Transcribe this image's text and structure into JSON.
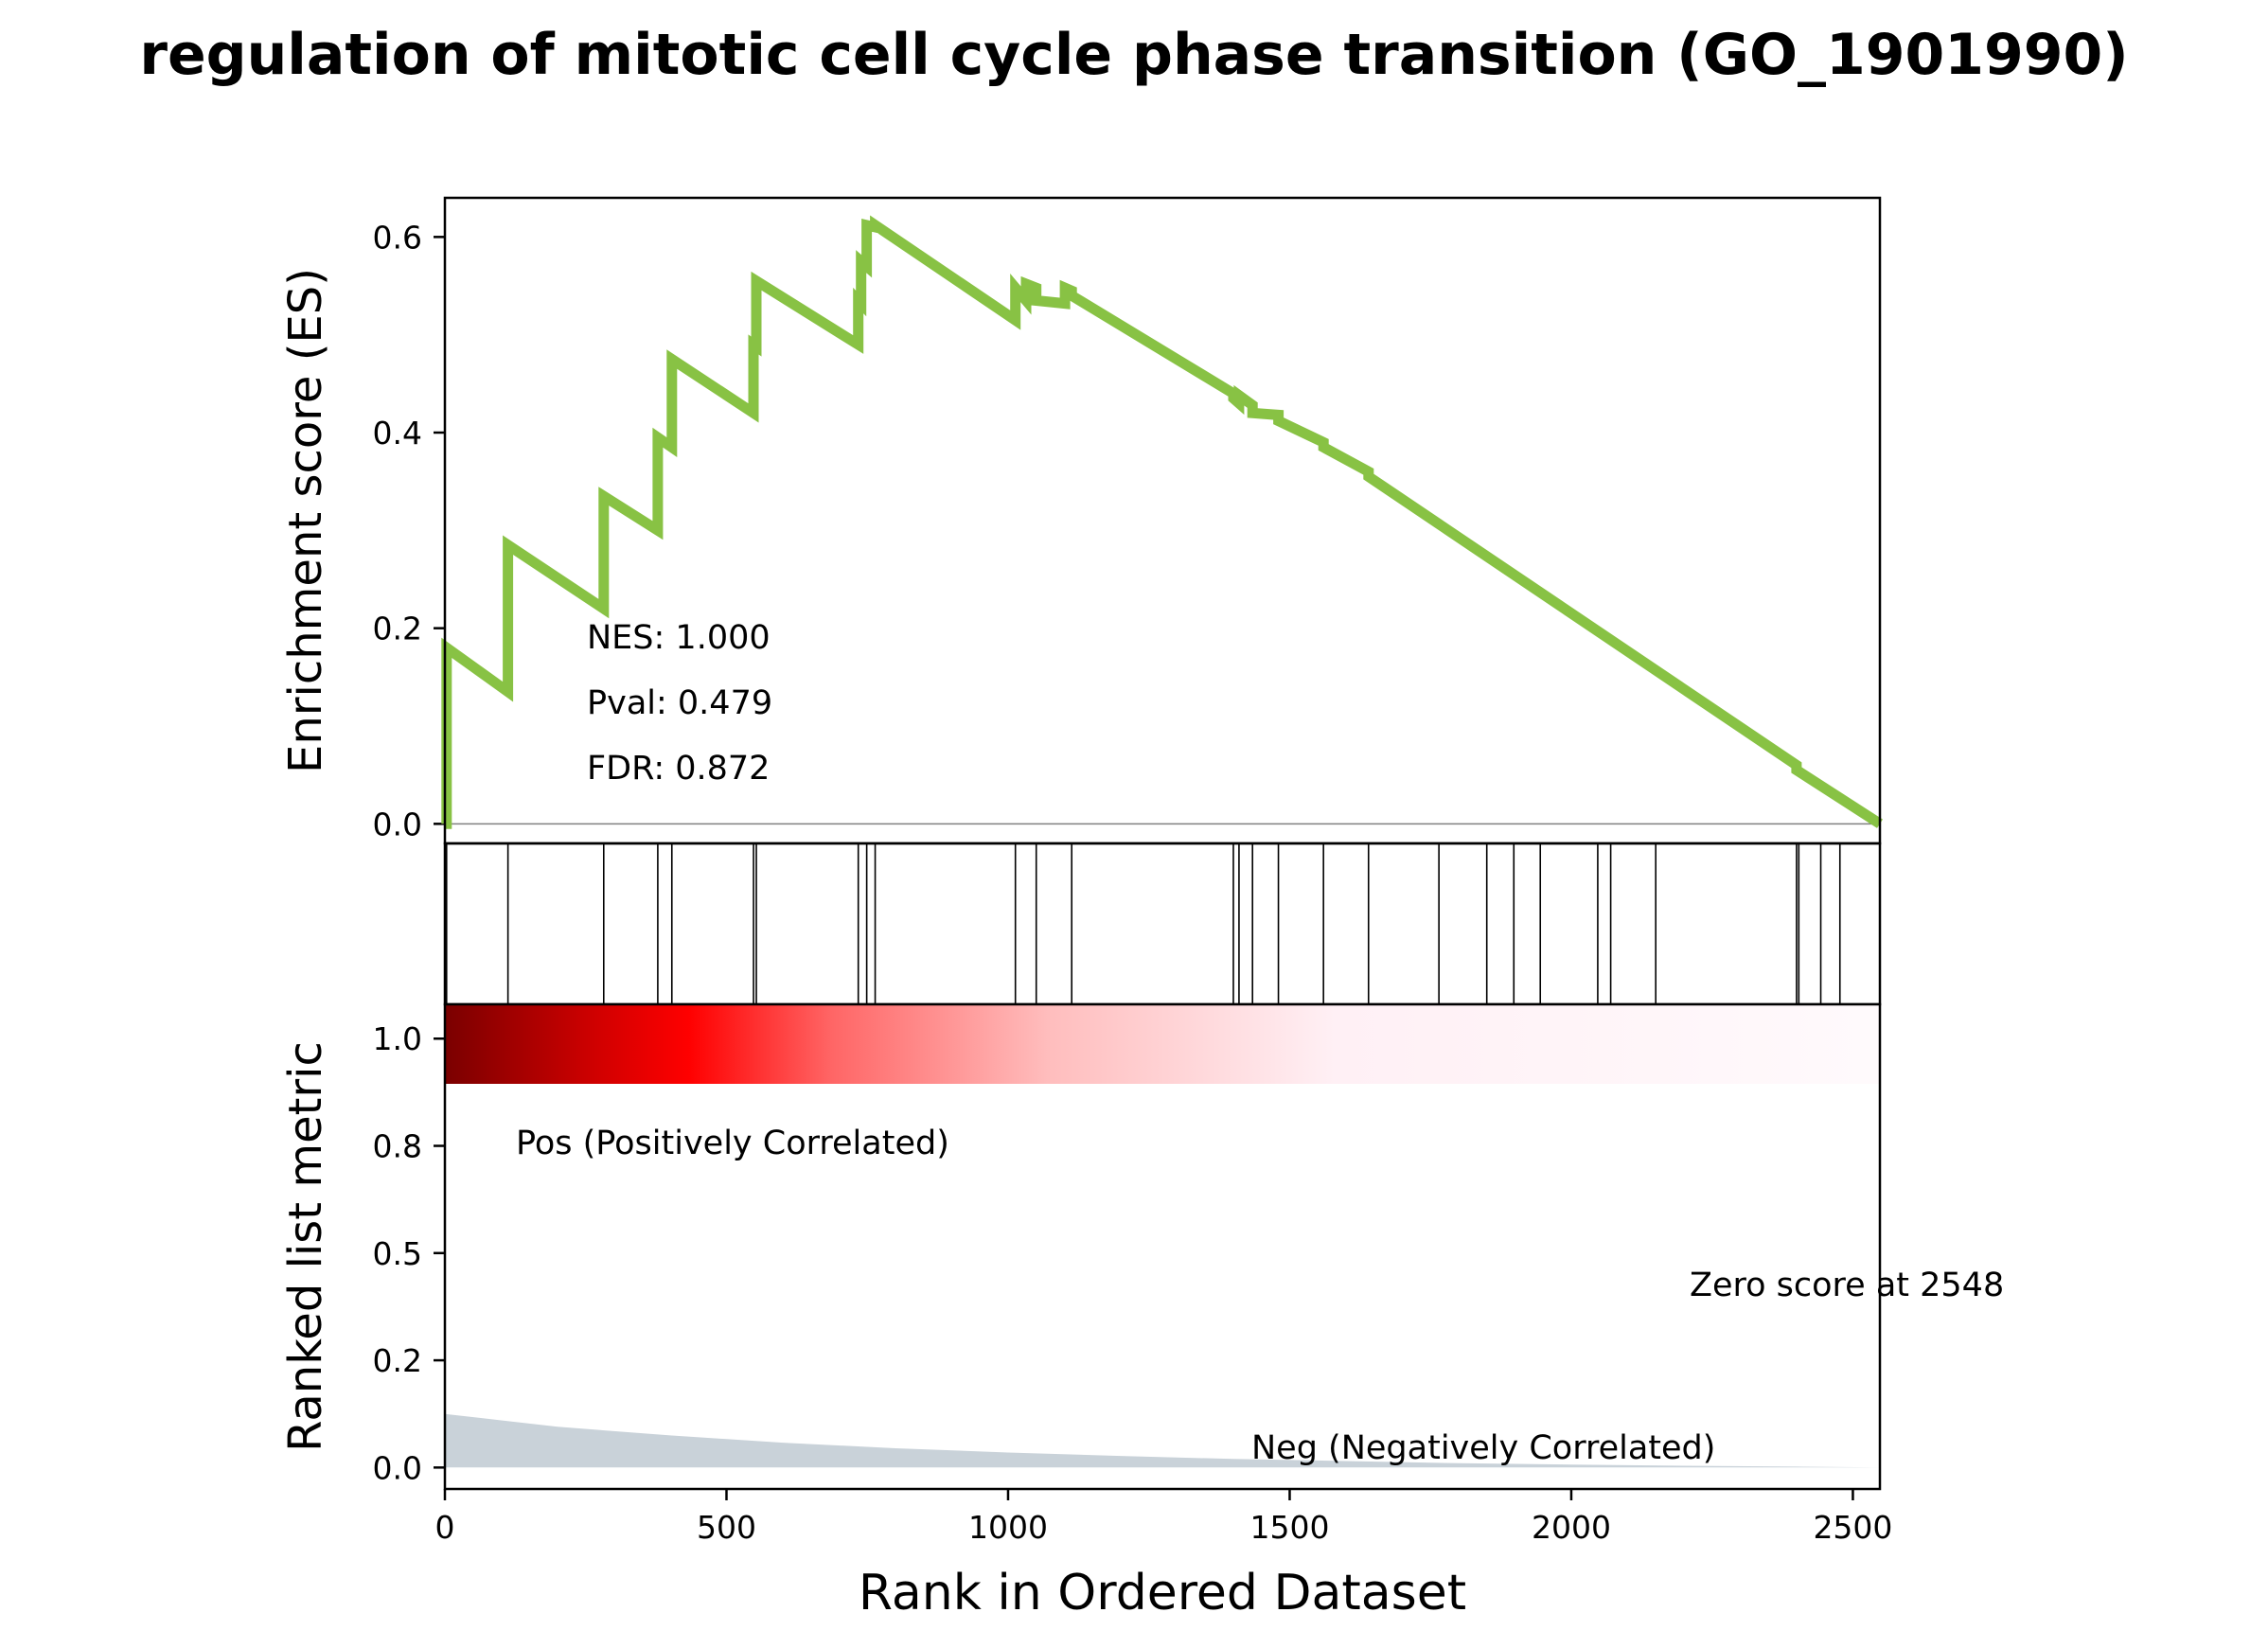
{
  "title": "regulation of mitotic cell cycle phase transition (GO_1901990)",
  "colors": {
    "es_line": "#88c244",
    "hit_line": "#000000",
    "pos_label": "#ff0000",
    "neg_label": "#0000ff",
    "metric_fill": "#c9d2d9",
    "zero_line": "#808080",
    "heat_scale": [
      "#7a0000",
      "#cc0000",
      "#ff0000",
      "#ff6666",
      "#ffbdbd",
      "#fff0f5",
      "#fffafc"
    ]
  },
  "stats": {
    "nes": "NES: 1.000",
    "pval": "Pval: 0.479",
    "fdr": "FDR: 0.872"
  },
  "labels": {
    "pos": "Pos (Positively Correlated)",
    "neg": "Neg (Negatively Correlated)",
    "zero_score": "Zero score at 2548"
  },
  "chart_data": {
    "type": "line",
    "title": "regulation of mitotic cell cycle phase transition (GO_1901990)",
    "xlabel": "Rank in Ordered Dataset",
    "xlim": [
      0,
      2548
    ],
    "x_ticks": [
      0,
      500,
      1000,
      1500,
      2000,
      2500
    ],
    "enrichment": {
      "ylabel": "Enrichment score (ES)",
      "ylim": [
        -0.02,
        0.64
      ],
      "y_ticks": [
        0.0,
        0.2,
        0.4,
        0.6
      ],
      "y_tick_labels": [
        "0.0",
        "0.2",
        "0.4",
        "0.6"
      ],
      "series": [
        {
          "x": [
            0,
            3,
            3,
            112,
            112,
            282,
            282,
            378,
            378,
            403,
            403,
            548,
            548,
            553,
            553,
            734,
            734,
            739,
            739,
            749,
            749,
            764,
            764,
            1013,
            1013,
            1032,
            1032,
            1050,
            1050,
            1101,
            1101,
            1113,
            1113,
            1400,
            1400,
            1410,
            1410,
            1434,
            1434,
            1480,
            1480,
            1560,
            1560,
            1640,
            1640,
            2400,
            2400,
            2548
          ],
          "y": [
            0,
            0,
            0.18,
            0.135,
            0.285,
            0.22,
            0.335,
            0.3,
            0.395,
            0.385,
            0.475,
            0.42,
            0.49,
            0.488,
            0.555,
            0.49,
            0.535,
            0.532,
            0.575,
            0.57,
            0.612,
            0.61,
            0.612,
            0.515,
            0.548,
            0.535,
            0.552,
            0.548,
            0.535,
            0.532,
            0.548,
            0.545,
            0.54,
            0.44,
            0.435,
            0.43,
            0.438,
            0.428,
            0.42,
            0.418,
            0.412,
            0.39,
            0.385,
            0.36,
            0.355,
            0.06,
            0.055,
            0.0
          ]
        }
      ]
    },
    "hits": [
      3,
      112,
      282,
      378,
      403,
      548,
      553,
      734,
      749,
      764,
      1013,
      1050,
      1113,
      1400,
      1410,
      1434,
      1480,
      1560,
      1640,
      1765,
      1850,
      1898,
      1945,
      2047,
      2070,
      2150,
      2400,
      2404,
      2443,
      2477
    ],
    "ranked_metric": {
      "ylabel": "Ranked list metric",
      "ylim": [
        -0.05,
        1.08
      ],
      "y_ticks": [
        0.0,
        0.25,
        0.5,
        0.75,
        1.0
      ],
      "y_tick_labels": [
        "0.0",
        "0.2",
        "0.5",
        "0.8",
        "1.0"
      ],
      "x": [
        0,
        100,
        200,
        400,
        600,
        800,
        1000,
        1200,
        1400,
        1600,
        1800,
        2000,
        2200,
        2400,
        2548
      ],
      "y": [
        0.125,
        0.11,
        0.095,
        0.075,
        0.058,
        0.045,
        0.035,
        0.027,
        0.02,
        0.015,
        0.01,
        0.007,
        0.004,
        0.002,
        0.0
      ]
    }
  }
}
